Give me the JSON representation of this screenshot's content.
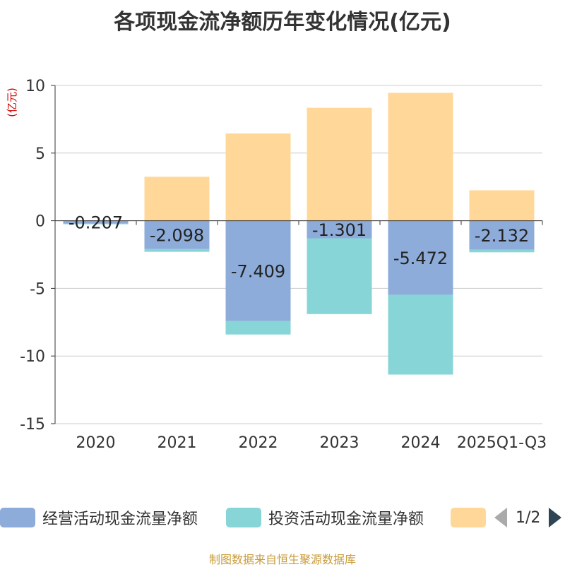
{
  "chart_data": {
    "type": "bar",
    "stacked": true,
    "title": "各项现金流净额历年变化情况(亿元)",
    "ylabel": "(亿元)",
    "ylim": [
      -15,
      10
    ],
    "yticks": [
      -15,
      -10,
      -5,
      0,
      5,
      10
    ],
    "categories": [
      "2020",
      "2021",
      "2022",
      "2023",
      "2024",
      "2025Q1-Q3"
    ],
    "series": [
      {
        "name": "经营活动现金流量净额",
        "color": "#8eacd9",
        "values": [
          -0.207,
          -2.098,
          -7.409,
          -1.301,
          -5.472,
          -2.132
        ],
        "show_labels": true
      },
      {
        "name": "投资活动现金流量净额",
        "color": "#88d5d8",
        "values": [
          -0.05,
          -0.2,
          -1.0,
          -5.6,
          -5.9,
          -0.2
        ],
        "show_labels": false
      },
      {
        "name": "",
        "color": "#ffd899",
        "values": [
          0,
          3.25,
          6.45,
          8.35,
          9.45,
          2.25
        ],
        "show_labels": false
      }
    ],
    "data_labels": [
      "-0.207",
      "-2.098",
      "-7.409",
      "-1.301",
      "-5.472",
      "-2.132"
    ]
  },
  "legend": {
    "items": [
      {
        "label": "经营活动现金流量净额",
        "color": "#8eacd9"
      },
      {
        "label": "投资活动现金流量净额",
        "color": "#88d5d8"
      },
      {
        "label": "",
        "color": "#ffd899"
      }
    ],
    "pager": "1/2"
  },
  "source": "制图数据来自恒生聚源数据库"
}
